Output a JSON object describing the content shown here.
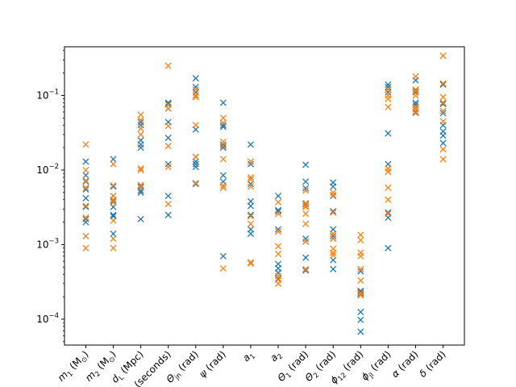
{
  "chart_data": {
    "type": "scatter",
    "title": "",
    "xlabel": "",
    "ylabel": "",
    "y_scale": "log",
    "ylim": [
      4.5e-05,
      0.45
    ],
    "grid": false,
    "legend": "none",
    "marker": "x",
    "y_ticks": [
      {
        "value": 0.0001,
        "base": "10",
        "exp": "−4"
      },
      {
        "value": 0.001,
        "base": "10",
        "exp": "−3"
      },
      {
        "value": 0.01,
        "base": "10",
        "exp": "−2"
      },
      {
        "value": 0.1,
        "base": "10",
        "exp": "−1"
      }
    ],
    "categories": [
      {
        "label": "m1 (M⊙)",
        "main": "m",
        "sub": "1",
        "rest": " (M",
        "sym": "⊙",
        "end": ")"
      },
      {
        "label": "m2 (M⊙)",
        "main": "m",
        "sub": "2",
        "rest": " (M",
        "sym": "⊙",
        "end": ")"
      },
      {
        "label": "dL (Mpc)",
        "main": "d",
        "sub": "L",
        "rest": " (Mpc)",
        "sym": "",
        "end": ""
      },
      {
        "label": "tc (seconds)",
        "main": "t",
        "sub": "c",
        "rest": " (seconds)",
        "sym": "",
        "end": ""
      },
      {
        "label": "Θjn (rad)",
        "main": "Θ",
        "sub": "jn",
        "rest": " (rad)",
        "sym": "",
        "end": ""
      },
      {
        "label": "ψ (rad)",
        "main": "ψ",
        "sub": "",
        "rest": " (rad)",
        "sym": "",
        "end": ""
      },
      {
        "label": "a1",
        "main": "a",
        "sub": "1",
        "rest": "",
        "sym": "",
        "end": ""
      },
      {
        "label": "a2",
        "main": "a",
        "sub": "2",
        "rest": "",
        "sym": "",
        "end": ""
      },
      {
        "label": "Θ1 (rad)",
        "main": "Θ",
        "sub": "1",
        "rest": " (rad)",
        "sym": "",
        "end": ""
      },
      {
        "label": "Θ2 (rad)",
        "main": "Θ",
        "sub": "2",
        "rest": " (rad)",
        "sym": "",
        "end": ""
      },
      {
        "label": "ϕ12 (rad)",
        "main": "ϕ",
        "sub": "12",
        "rest": " (rad)",
        "sym": "",
        "end": ""
      },
      {
        "label": "ϕjl (rad)",
        "main": "ϕ",
        "sub": "jl",
        "rest": " (rad)",
        "sym": "",
        "end": ""
      },
      {
        "label": "α (rad)",
        "main": "α",
        "sub": "",
        "rest": " (rad)",
        "sym": "",
        "end": ""
      },
      {
        "label": "δ (rad)",
        "main": "δ",
        "sub": "",
        "rest": " (rad)",
        "sym": "",
        "end": ""
      }
    ],
    "series": [
      {
        "color": "#1f77b4",
        "values": [
          [
            0.013,
            0.0085,
            0.007,
            0.0055,
            0.0042,
            0.0032,
            0.0022,
            0.002
          ],
          [
            0.014,
            0.006,
            0.0045,
            0.004,
            0.0038,
            0.0032,
            0.0025,
            0.0024,
            0.0014
          ],
          [
            0.044,
            0.04,
            0.025,
            0.022,
            0.02,
            0.006,
            0.0053,
            0.005,
            0.0022
          ],
          [
            0.08,
            0.077,
            0.067,
            0.044,
            0.027,
            0.012,
            0.0045,
            0.0025
          ],
          [
            0.17,
            0.13,
            0.11,
            0.035,
            0.015,
            0.013,
            0.012,
            0.011,
            0.0065
          ],
          [
            0.08,
            0.04,
            0.038,
            0.022,
            0.02,
            0.0085,
            0.007,
            0.0058,
            0.0007
          ],
          [
            0.022,
            0.012,
            0.0065,
            0.0038,
            0.0033,
            0.0025,
            0.0016,
            0.0014
          ],
          [
            0.0045,
            0.0029,
            0.0028,
            0.0016,
            0.00055,
            0.00048,
            0.00042,
            0.00035
          ],
          [
            0.0118,
            0.007,
            0.0057,
            0.0035,
            0.0012,
            0.0011,
            0.00067,
            0.00045
          ],
          [
            0.0068,
            0.006,
            0.0045,
            0.0028,
            0.0016,
            0.0013,
            0.0012,
            0.00062,
            0.00047
          ],
          [
            0.00044,
            0.00024,
            0.00023,
            0.00022,
            0.00021,
            0.000125,
            9.8e-05,
            6.8e-05
          ],
          [
            0.14,
            0.13,
            0.12,
            0.11,
            0.031,
            0.012,
            0.0095,
            0.0027,
            0.0023,
            0.0009
          ],
          [
            0.16,
            0.11,
            0.08,
            0.075,
            0.07,
            0.065,
            0.06
          ],
          [
            0.14,
            0.08,
            0.077,
            0.058,
            0.04,
            0.033,
            0.029,
            0.023
          ]
        ]
      },
      {
        "color": "#ff7f0e",
        "values": [
          [
            0.022,
            0.01,
            0.0072,
            0.0058,
            0.0033,
            0.0023,
            0.0013,
            0.0009
          ],
          [
            0.012,
            0.0062,
            0.0045,
            0.004,
            0.0037,
            0.0021,
            0.0012,
            0.0009
          ],
          [
            0.055,
            0.047,
            0.036,
            0.03,
            0.0105,
            0.01,
            0.0063,
            0.0058
          ],
          [
            0.25,
            0.075,
            0.067,
            0.039,
            0.021,
            0.011,
            0.0035
          ],
          [
            0.12,
            0.1,
            0.095,
            0.04,
            0.015,
            0.0067
          ],
          [
            0.05,
            0.043,
            0.024,
            0.021,
            0.014,
            0.0062,
            0.0058,
            0.00048
          ],
          [
            0.013,
            0.008,
            0.0075,
            0.006,
            0.0024,
            0.0019,
            0.00058,
            0.00056
          ],
          [
            0.0037,
            0.0026,
            0.0015,
            0.00095,
            0.00075,
            0.00038,
            0.00034,
            0.0003
          ],
          [
            0.0053,
            0.0036,
            0.0033,
            0.0032,
            0.0026,
            0.0019,
            0.0011,
            0.00047
          ],
          [
            0.005,
            0.0046,
            0.0027,
            0.0014,
            0.0012,
            0.00088,
            0.00078,
            0.00072
          ],
          [
            0.00135,
            0.00115,
            0.00078,
            0.0007,
            0.00047,
            0.00033,
            0.000225,
            0.00021
          ],
          [
            0.12,
            0.1,
            0.09,
            0.07,
            0.0105,
            0.0095,
            0.0058,
            0.004,
            0.0026
          ],
          [
            0.18,
            0.12,
            0.115,
            0.1,
            0.07,
            0.065,
            0.058
          ],
          [
            0.34,
            0.145,
            0.095,
            0.08,
            0.062,
            0.045,
            0.019,
            0.014
          ]
        ]
      }
    ]
  }
}
